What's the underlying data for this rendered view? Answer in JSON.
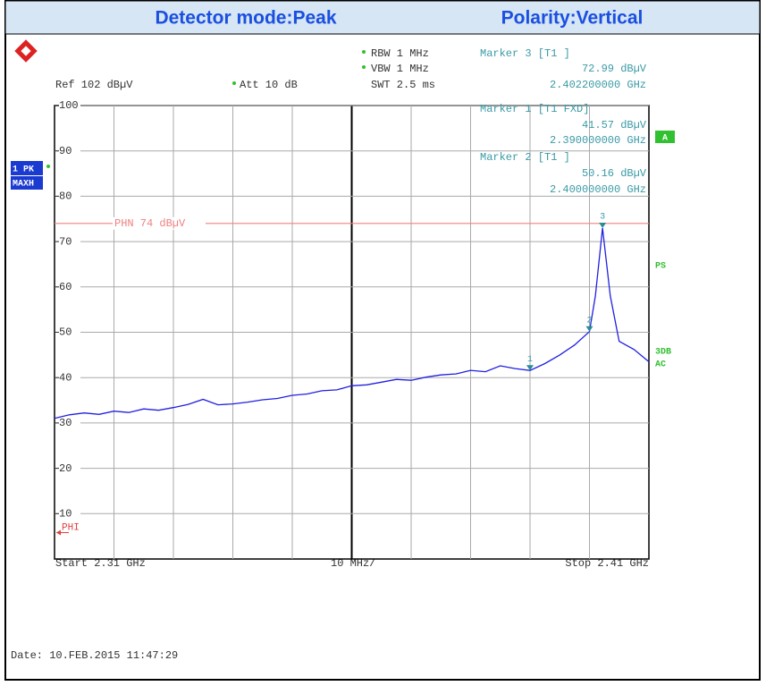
{
  "header": {
    "left": "Detector mode:Peak",
    "right": "Polarity:Vertical"
  },
  "settings": {
    "rbw": "RBW 1 MHz",
    "vbw": "VBW 1 MHz",
    "swt": "SWT 2.5 ms",
    "ref": "Ref 102 dBµV",
    "att": "Att 10 dB"
  },
  "side": {
    "trace": "1 PK",
    "mode": "MAXH",
    "a": "A",
    "ps": "PS",
    "db": "3DB",
    "ac": "AC"
  },
  "footer": {
    "start": "Start 2.31 GHz",
    "div": "10 MHz/",
    "stop": "Stop 2.41 GHz",
    "date": "Date: 10.FEB.2015  11:47:29"
  },
  "chart_data": {
    "type": "line",
    "color": "#2020e0",
    "xlim": [
      2.31,
      2.41
    ],
    "ylim": [
      0,
      100
    ],
    "yticks": [
      100,
      90,
      80,
      70,
      60,
      50,
      40,
      30,
      20,
      10
    ],
    "grid": true,
    "x": [
      2.31,
      2.3125,
      2.315,
      2.3175,
      2.32,
      2.3225,
      2.325,
      2.3275,
      2.33,
      2.3325,
      2.335,
      2.3375,
      2.34,
      2.3425,
      2.345,
      2.3475,
      2.35,
      2.3525,
      2.355,
      2.3575,
      2.36,
      2.3625,
      2.365,
      2.3675,
      2.37,
      2.3725,
      2.375,
      2.3775,
      2.38,
      2.3825,
      2.385,
      2.3875,
      2.39,
      2.3925,
      2.395,
      2.3975,
      2.4,
      2.401,
      2.4022,
      2.4035,
      2.405,
      2.4075,
      2.41
    ],
    "values": [
      31,
      31.8,
      32.2,
      31.9,
      32.6,
      32.3,
      33.1,
      32.8,
      33.4,
      34.1,
      35.2,
      34,
      34.2,
      34.6,
      35.1,
      35.4,
      36.1,
      36.4,
      37.1,
      37.3,
      38.2,
      38.4,
      39,
      39.6,
      39.4,
      40.1,
      40.6,
      40.8,
      41.6,
      41.3,
      42.6,
      42,
      41.57,
      43.1,
      45,
      47.2,
      50.16,
      58,
      72.99,
      58,
      48,
      46.2,
      43.5
    ],
    "markers": [
      {
        "id": "3",
        "name": "Marker 3 [T1 ]",
        "value": 72.99,
        "value_label": "72.99 dBµV",
        "x": 2.4022,
        "x_label": "2.402200000 GHz"
      },
      {
        "id": "1",
        "name": "Marker 1 [T1 FXD]",
        "value": 41.57,
        "value_label": "41.57 dBµV",
        "x": 2.39,
        "x_label": "2.390000000 GHz"
      },
      {
        "id": "2",
        "name": "Marker 2 [T1 ]",
        "value": 50.16,
        "value_label": "50.16 dBµV",
        "x": 2.4,
        "x_label": "2.400000000 GHz"
      }
    ],
    "lines": [
      {
        "label": "PHN 74 dBµV",
        "value": 74,
        "color": "#f08080"
      },
      {
        "label": "PHI",
        "value": 7,
        "color": "#e04040"
      }
    ]
  }
}
